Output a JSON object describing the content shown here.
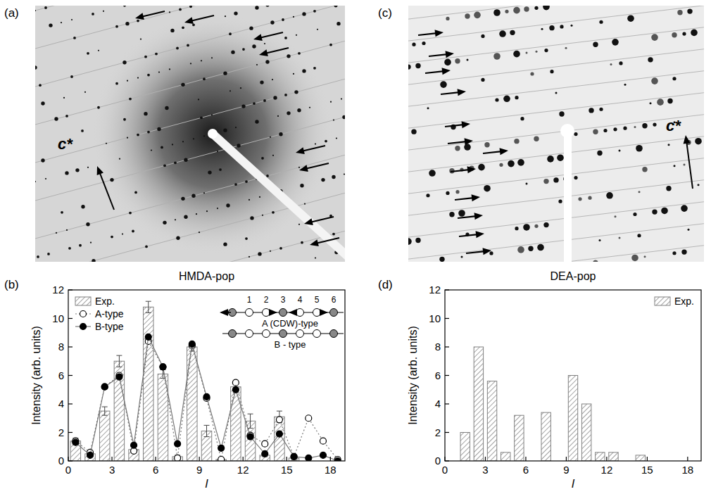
{
  "chart_data": [
    {
      "type": "bar",
      "panel_label": "(b)",
      "title": "HMDA-pop",
      "x_label": "l",
      "y_label": "Intensity (arb. units)",
      "x": [
        0.5,
        1.5,
        2.5,
        3.5,
        4.5,
        5.5,
        6.5,
        7.5,
        8.5,
        9.5,
        10.5,
        11.5,
        12.5,
        13.5,
        14.5,
        15.5,
        16.5,
        17.5,
        18.5
      ],
      "xlim": [
        0,
        19
      ],
      "xticks": [
        0,
        3,
        6,
        9,
        12,
        15,
        18
      ],
      "ylim": [
        0,
        12
      ],
      "yticks": [
        0,
        2,
        4,
        6,
        8,
        10,
        12
      ],
      "legend": "upper left",
      "series": [
        {
          "name": "Exp.",
          "type": "bar",
          "color": "#808080",
          "values": [
            1.4,
            0.5,
            3.5,
            7.0,
            0.8,
            10.8,
            6.1,
            0.3,
            8.0,
            2.1,
            0.1,
            5.2,
            2.8,
            0.4,
            3.1,
            0.2,
            null,
            null,
            null
          ],
          "errors": [
            0.2,
            0.1,
            0.3,
            0.4,
            0.2,
            0.4,
            0.3,
            0.1,
            0.3,
            0.4,
            0.1,
            0.4,
            0.5,
            0.1,
            0.4,
            0.1,
            null,
            null,
            null
          ]
        },
        {
          "name": "A-type",
          "type": "line",
          "marker": "open-circle",
          "line_style": "dotted",
          "color": "#777777",
          "values": [
            1.4,
            0.6,
            5.2,
            6.0,
            0.7,
            8.4,
            6.6,
            0.2,
            8.1,
            4.4,
            0.1,
            5.5,
            1.8,
            1.2,
            2.9,
            0.3,
            3.0,
            1.4,
            0.1
          ]
        },
        {
          "name": "B-type",
          "type": "line",
          "marker": "filled-circle",
          "line_style": "solid",
          "color": "#777777",
          "values": [
            1.3,
            0.4,
            5.2,
            5.9,
            1.1,
            8.7,
            6.6,
            1.2,
            8.2,
            4.5,
            0.9,
            5.0,
            1.7,
            0.5,
            1.9,
            0.3,
            0.2,
            0.4,
            0.0
          ]
        }
      ],
      "inset": {
        "numbers": [
          "1",
          "2",
          "3",
          "4",
          "5",
          "6"
        ],
        "rows": [
          "A (CDW)-type",
          "B - type"
        ]
      }
    },
    {
      "type": "bar",
      "panel_label": "(d)",
      "title": "DEA-pop",
      "x_label": "l",
      "y_label": "Intensity (arb. units)",
      "x": [
        1.5,
        2.5,
        3.5,
        4.5,
        5.5,
        7.5,
        9.5,
        10.5,
        11.5,
        12.5,
        14.5
      ],
      "xlim": [
        0,
        19
      ],
      "xticks": [
        0,
        3,
        6,
        9,
        12,
        15,
        18
      ],
      "ylim": [
        0,
        12
      ],
      "yticks": [
        0,
        2,
        4,
        6,
        8,
        10,
        12
      ],
      "legend": "upper right",
      "series": [
        {
          "name": "Exp.",
          "type": "bar",
          "color": "#808080",
          "values": [
            2.0,
            8.0,
            5.6,
            0.6,
            3.2,
            3.4,
            6.0,
            4.0,
            0.6,
            0.6,
            0.4
          ]
        }
      ]
    }
  ],
  "images": [
    {
      "panel_label": "(a)",
      "axis_label": "c*"
    },
    {
      "panel_label": "(c)",
      "axis_label": "c*"
    }
  ]
}
